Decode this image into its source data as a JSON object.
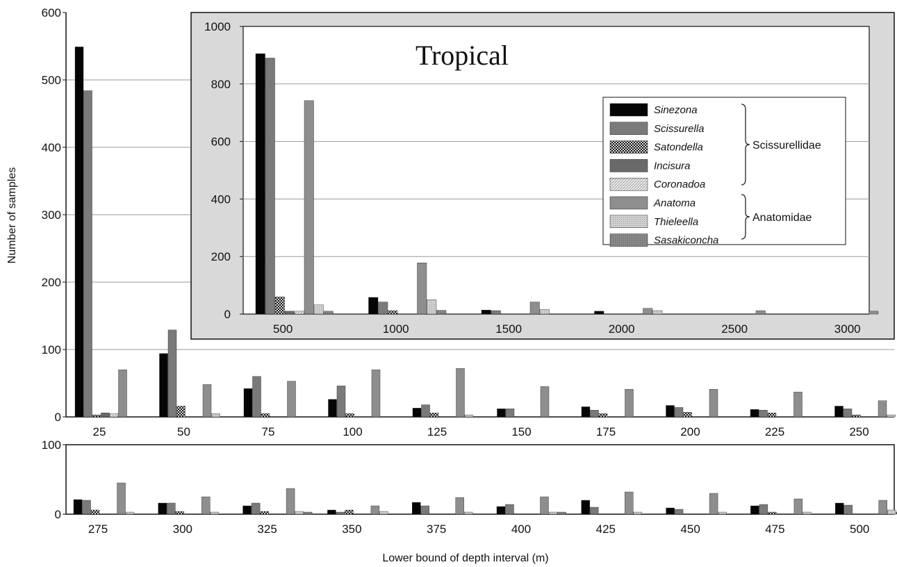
{
  "chart_data": [
    {
      "id": "top",
      "type": "bar",
      "ylabel": "Number of samples",
      "ylim": [
        0,
        600
      ],
      "yticks": [
        0,
        100,
        200,
        300,
        400,
        500,
        600
      ],
      "categories": [
        "25",
        "50",
        "75",
        "100",
        "125",
        "150",
        "175",
        "200",
        "225",
        "250"
      ],
      "series": [
        {
          "name": "Sinezona",
          "values": [
            549,
            94,
            42,
            26,
            13,
            12,
            15,
            17,
            11,
            16
          ]
        },
        {
          "name": "Scissurella",
          "values": [
            484,
            129,
            60,
            46,
            18,
            12,
            10,
            14,
            10,
            12
          ]
        },
        {
          "name": "Satondella",
          "values": [
            3,
            16,
            5,
            5,
            6,
            0,
            5,
            7,
            6,
            3
          ]
        },
        {
          "name": "Incisura",
          "values": [
            6,
            0,
            0,
            0,
            0,
            0,
            0,
            0,
            0,
            0
          ]
        },
        {
          "name": "Coronadoa",
          "values": [
            5,
            0,
            0,
            0,
            0,
            0,
            0,
            0,
            0,
            0
          ]
        },
        {
          "name": "Anatoma",
          "values": [
            70,
            48,
            53,
            70,
            72,
            45,
            41,
            41,
            37,
            24
          ]
        },
        {
          "name": "Thieleella",
          "values": [
            0,
            5,
            0,
            0,
            3,
            0,
            0,
            0,
            0,
            3
          ]
        },
        {
          "name": "Sasakiconcha",
          "values": [
            0,
            0,
            0,
            0,
            0,
            0,
            0,
            0,
            0,
            0
          ]
        }
      ]
    },
    {
      "id": "bottom",
      "type": "bar",
      "xlabel": "Lower bound of depth interval (m)",
      "ylim": [
        0,
        100
      ],
      "yticks": [
        0,
        100
      ],
      "categories": [
        "275",
        "300",
        "325",
        "350",
        "375",
        "400",
        "425",
        "450",
        "475",
        "500"
      ],
      "series": [
        {
          "name": "Sinezona",
          "values": [
            21,
            16,
            12,
            6,
            17,
            11,
            20,
            9,
            12,
            16
          ]
        },
        {
          "name": "Scissurella",
          "values": [
            20,
            16,
            16,
            3,
            12,
            14,
            10,
            7,
            14,
            13
          ]
        },
        {
          "name": "Satondella",
          "values": [
            6,
            4,
            4,
            6,
            0,
            0,
            0,
            0,
            3,
            0
          ]
        },
        {
          "name": "Incisura",
          "values": [
            0,
            0,
            0,
            0,
            0,
            0,
            0,
            0,
            0,
            0
          ]
        },
        {
          "name": "Coronadoa",
          "values": [
            0,
            0,
            0,
            0,
            0,
            0,
            0,
            0,
            0,
            0
          ]
        },
        {
          "name": "Anatoma",
          "values": [
            45,
            25,
            37,
            12,
            24,
            25,
            32,
            30,
            22,
            20
          ]
        },
        {
          "name": "Thieleella",
          "values": [
            3,
            3,
            4,
            4,
            3,
            3,
            3,
            3,
            3,
            6
          ]
        },
        {
          "name": "Sasakiconcha",
          "values": [
            0,
            0,
            3,
            0,
            0,
            3,
            0,
            0,
            0,
            3
          ]
        }
      ]
    },
    {
      "id": "inset",
      "type": "bar",
      "title": "Tropical",
      "ylim": [
        0,
        1000
      ],
      "yticks": [
        0,
        200,
        400,
        600,
        800,
        1000
      ],
      "categories": [
        "500",
        "1000",
        "1500",
        "2000",
        "2500",
        "3000"
      ],
      "series": [
        {
          "name": "Sinezona",
          "values": [
            905,
            58,
            14,
            10,
            0,
            0
          ]
        },
        {
          "name": "Scissurella",
          "values": [
            890,
            42,
            12,
            0,
            0,
            0
          ]
        },
        {
          "name": "Satondella",
          "values": [
            60,
            12,
            0,
            0,
            0,
            0
          ]
        },
        {
          "name": "Incisura",
          "values": [
            10,
            0,
            0,
            0,
            0,
            0
          ]
        },
        {
          "name": "Coronadoa",
          "values": [
            10,
            0,
            0,
            0,
            0,
            0
          ]
        },
        {
          "name": "Anatoma",
          "values": [
            742,
            178,
            42,
            20,
            12,
            10
          ]
        },
        {
          "name": "Thieleella",
          "values": [
            32,
            50,
            16,
            12,
            0,
            0
          ]
        },
        {
          "name": "Sasakiconcha",
          "values": [
            10,
            13,
            0,
            0,
            0,
            0
          ]
        }
      ],
      "legend": {
        "position": "top-right",
        "groups": [
          {
            "name": "Scissurellidae",
            "members": [
              "Sinezona",
              "Scissurella",
              "Satondella",
              "Incisura",
              "Coronadoa"
            ]
          },
          {
            "name": "Anatomidae",
            "members": [
              "Anatoma",
              "Thieleella",
              "Sasakiconcha"
            ]
          }
        ]
      }
    }
  ],
  "series_styles": [
    {
      "name": "Sinezona",
      "fill": "#050505",
      "pattern": "solid"
    },
    {
      "name": "Scissurella",
      "fill": "#7a7a7a",
      "pattern": "solid"
    },
    {
      "name": "Satondella",
      "fill": "#222222",
      "pattern": "checker"
    },
    {
      "name": "Incisura",
      "fill": "#6a6a6a",
      "pattern": "solid"
    },
    {
      "name": "Coronadoa",
      "fill": "#d8d8d8",
      "pattern": "hatch"
    },
    {
      "name": "Anatoma",
      "fill": "#8e8e8e",
      "pattern": "solid"
    },
    {
      "name": "Thieleella",
      "fill": "#c8c8c8",
      "pattern": "dots"
    },
    {
      "name": "Sasakiconcha",
      "fill": "#858585",
      "pattern": "dots"
    }
  ],
  "colors": {
    "inset_background": "#d9d9d9",
    "gridline": "#9a9a9a",
    "axis": "#111111"
  }
}
